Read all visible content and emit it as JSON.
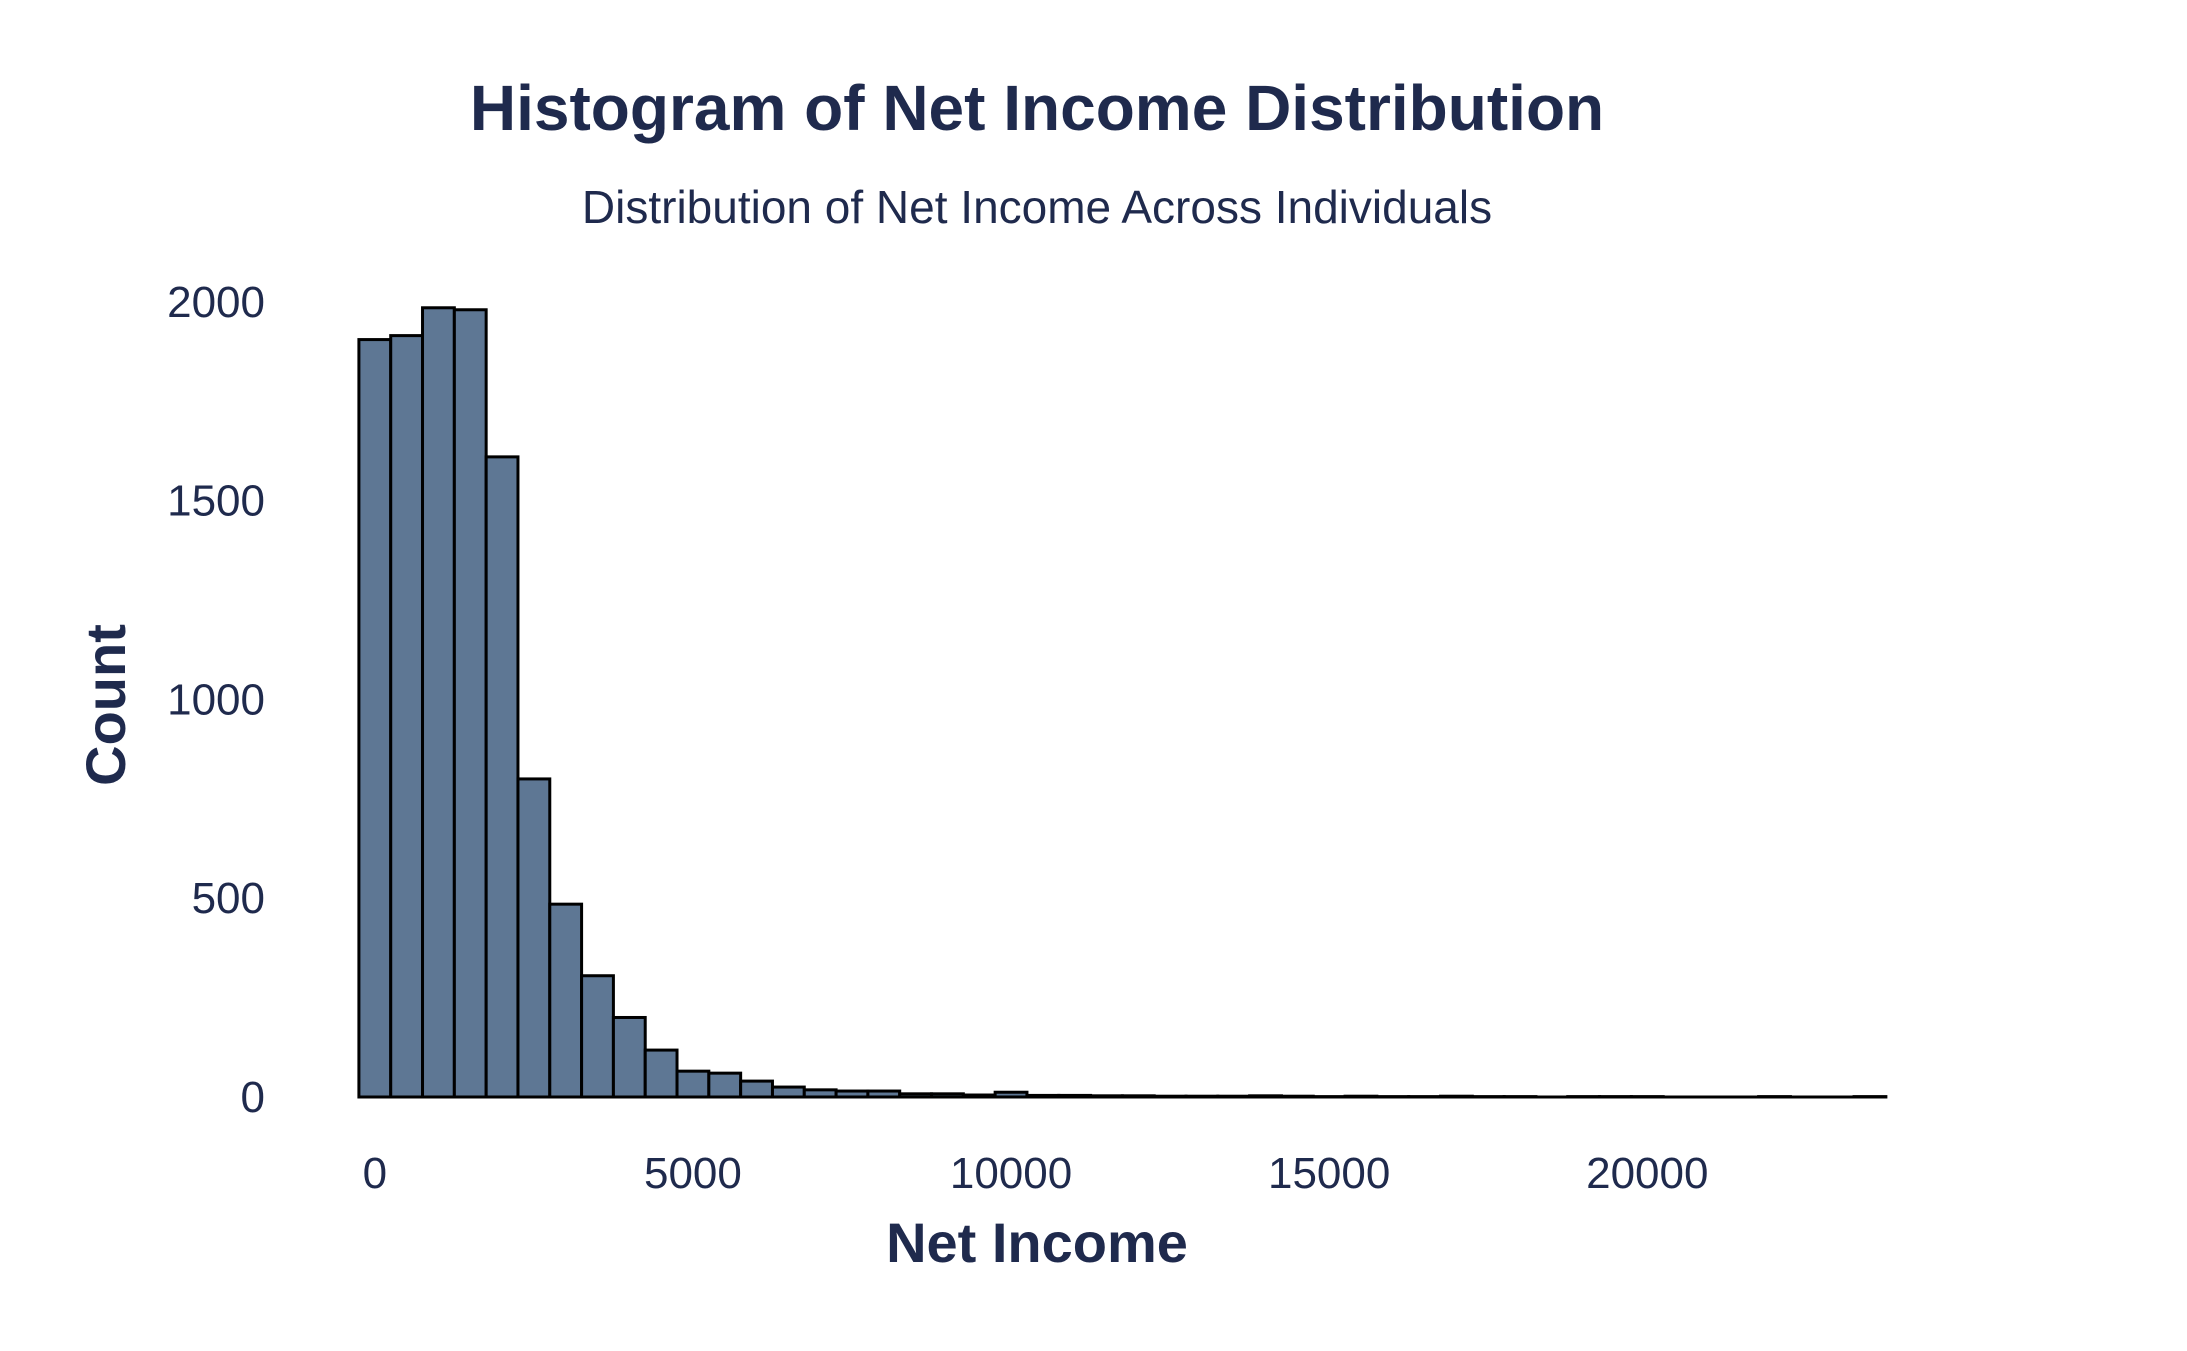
{
  "chart_data": {
    "type": "bar",
    "title": "Histogram of Net Income Distribution",
    "subtitle": "Distribution of Net Income Across Individuals",
    "xlabel": "Net Income",
    "ylabel": "Count",
    "xlim": [
      -500,
      21300
    ],
    "ylim": [
      0,
      2080
    ],
    "xticks": [
      0,
      5000,
      10000,
      15000,
      20000
    ],
    "yticks": [
      0,
      500,
      1000,
      1500,
      2000
    ],
    "bin_start": -250,
    "bin_width": 500,
    "values": [
      1905,
      1915,
      1985,
      1980,
      1610,
      800,
      485,
      305,
      200,
      118,
      65,
      60,
      40,
      25,
      18,
      15,
      15,
      8,
      8,
      5,
      12,
      4,
      4,
      3,
      3,
      2,
      2,
      2,
      3,
      2,
      1,
      2,
      1,
      1,
      2,
      1,
      1,
      0,
      1,
      1,
      1,
      0,
      0,
      0,
      1,
      0,
      0,
      1
    ],
    "grid": false,
    "colors": {
      "bar_fill": "#5e7794",
      "bar_edge": "#000000",
      "text": "#1f2a4d",
      "axis_line": "#000000"
    }
  }
}
